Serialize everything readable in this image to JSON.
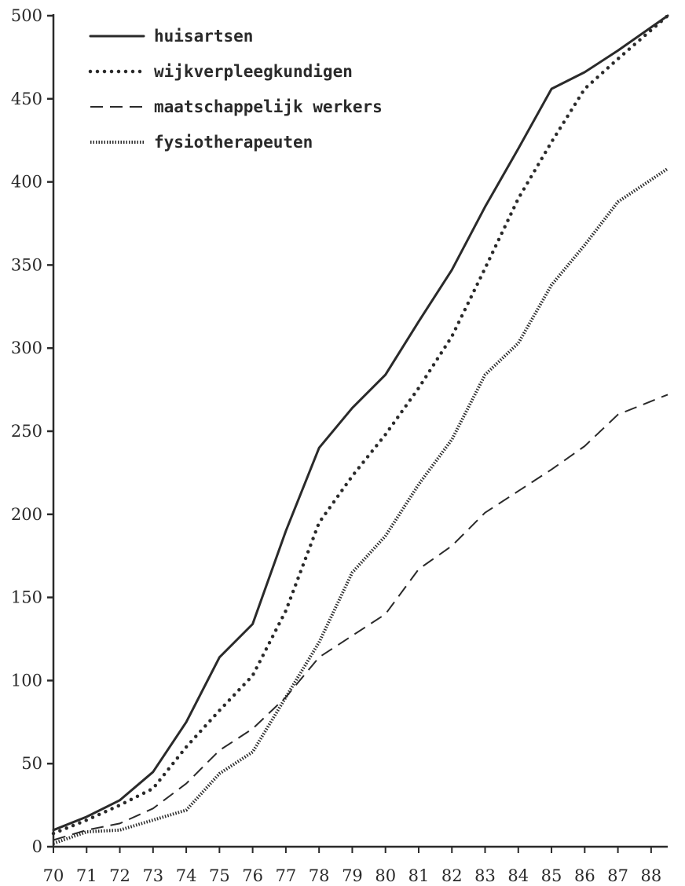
{
  "chart_data": {
    "type": "line",
    "title": "",
    "xlabel": "",
    "ylabel": "",
    "xlim": [
      70,
      88.5
    ],
    "ylim": [
      0,
      500
    ],
    "x_ticks": [
      "70",
      "71",
      "72",
      "73",
      "74",
      "75",
      "76",
      "77",
      "78",
      "79",
      "80",
      "81",
      "82",
      "83",
      "84",
      "85",
      "86",
      "87",
      "88"
    ],
    "y_ticks": [
      "0",
      "50",
      "100",
      "150",
      "200",
      "250",
      "300",
      "350",
      "400",
      "450",
      "500"
    ],
    "grid": false,
    "legend_position": "top-left",
    "series": [
      {
        "name": "huisartsen",
        "style": "solid",
        "color": "#2a2a2a",
        "points": [
          [
            70,
            10
          ],
          [
            71,
            18
          ],
          [
            72,
            28
          ],
          [
            73,
            45
          ],
          [
            74,
            75
          ],
          [
            75,
            114
          ],
          [
            76,
            134
          ],
          [
            77,
            190
          ],
          [
            78,
            240
          ],
          [
            79,
            264
          ],
          [
            80,
            284
          ],
          [
            81,
            316
          ],
          [
            82,
            347
          ],
          [
            83,
            385
          ],
          [
            84,
            420
          ],
          [
            85,
            456
          ],
          [
            86,
            466
          ],
          [
            87,
            479
          ],
          [
            88.5,
            500
          ]
        ]
      },
      {
        "name": "wijkverpleegkundigen",
        "style": "dotted",
        "color": "#2a2a2a",
        "points": [
          [
            70,
            8
          ],
          [
            71,
            16
          ],
          [
            72,
            25
          ],
          [
            73,
            35
          ],
          [
            74,
            60
          ],
          [
            75,
            82
          ],
          [
            76,
            103
          ],
          [
            77,
            142
          ],
          [
            78,
            195
          ],
          [
            79,
            223
          ],
          [
            80,
            248
          ],
          [
            81,
            276
          ],
          [
            82,
            307
          ],
          [
            83,
            348
          ],
          [
            84,
            390
          ],
          [
            85,
            424
          ],
          [
            86,
            456
          ],
          [
            87,
            474
          ],
          [
            88.5,
            500
          ]
        ]
      },
      {
        "name": "maatschappelijk werkers",
        "style": "dashed",
        "color": "#2a2a2a",
        "points": [
          [
            70,
            4
          ],
          [
            71,
            10
          ],
          [
            72,
            14
          ],
          [
            73,
            23
          ],
          [
            74,
            38
          ],
          [
            75,
            58
          ],
          [
            76,
            71
          ],
          [
            77,
            90
          ],
          [
            78,
            114
          ],
          [
            79,
            127
          ],
          [
            80,
            140
          ],
          [
            81,
            167
          ],
          [
            82,
            181
          ],
          [
            83,
            201
          ],
          [
            84,
            214
          ],
          [
            85,
            227
          ],
          [
            86,
            241
          ],
          [
            87,
            260
          ],
          [
            88.5,
            272
          ]
        ]
      },
      {
        "name": "fysiotherapeuten",
        "style": "dense-dotted",
        "color": "#2a2a2a",
        "points": [
          [
            70,
            2
          ],
          [
            71,
            9
          ],
          [
            72,
            10
          ],
          [
            73,
            16
          ],
          [
            74,
            22
          ],
          [
            75,
            44
          ],
          [
            76,
            57
          ],
          [
            77,
            90
          ],
          [
            78,
            123
          ],
          [
            79,
            165
          ],
          [
            80,
            187
          ],
          [
            81,
            218
          ],
          [
            82,
            245
          ],
          [
            83,
            284
          ],
          [
            84,
            303
          ],
          [
            85,
            338
          ],
          [
            86,
            362
          ],
          [
            87,
            388
          ],
          [
            88.5,
            408
          ]
        ]
      }
    ]
  }
}
